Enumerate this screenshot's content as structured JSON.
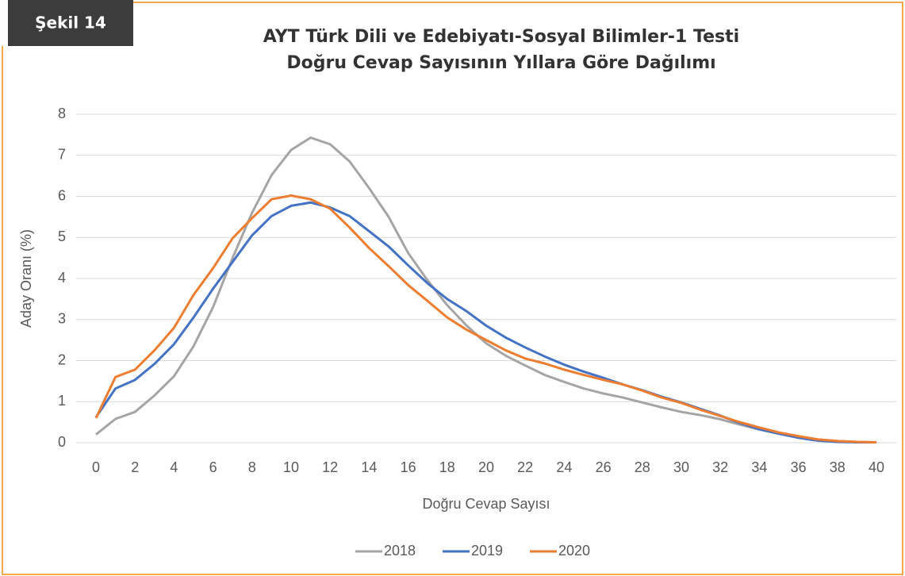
{
  "figure_label": "Şekil 14",
  "chart_data": {
    "type": "line",
    "title": [
      "AYT Türk Dili ve Edebiyatı-Sosyal Bilimler-1 Testi",
      "Doğru Cevap Sayısının Yıllara Göre Dağılımı"
    ],
    "x_label": "Doğru Cevap Sayısı",
    "y_label": "Aday Oranı (%)",
    "x": [
      0,
      1,
      2,
      3,
      4,
      5,
      6,
      7,
      8,
      9,
      10,
      11,
      12,
      13,
      14,
      15,
      16,
      17,
      18,
      19,
      20,
      21,
      22,
      23,
      24,
      25,
      26,
      27,
      28,
      29,
      30,
      31,
      32,
      33,
      34,
      35,
      36,
      37,
      38,
      39,
      40
    ],
    "xlim": [
      0,
      40
    ],
    "xticks": [
      0,
      2,
      4,
      6,
      8,
      10,
      12,
      14,
      16,
      18,
      20,
      22,
      24,
      26,
      28,
      30,
      32,
      34,
      36,
      38,
      40
    ],
    "ylim": [
      0,
      8
    ],
    "yticks": [
      0,
      1,
      2,
      3,
      4,
      5,
      6,
      7,
      8
    ],
    "grid": true,
    "legend": "bottom",
    "series": [
      {
        "name": "2018",
        "color": "#a5a5a5",
        "values": [
          0.2,
          0.58,
          0.75,
          1.15,
          1.62,
          2.35,
          3.3,
          4.5,
          5.6,
          6.52,
          7.13,
          7.43,
          7.27,
          6.85,
          6.2,
          5.5,
          4.62,
          3.95,
          3.35,
          2.85,
          2.42,
          2.12,
          1.88,
          1.65,
          1.48,
          1.32,
          1.2,
          1.1,
          0.98,
          0.86,
          0.75,
          0.67,
          0.57,
          0.44,
          0.32,
          0.22,
          0.15,
          0.08,
          0.04,
          0.02,
          0.01
        ]
      },
      {
        "name": "2019",
        "color": "#4472c4",
        "values": [
          0.62,
          1.32,
          1.53,
          1.92,
          2.4,
          3.05,
          3.75,
          4.4,
          5.05,
          5.52,
          5.77,
          5.85,
          5.73,
          5.52,
          5.15,
          4.78,
          4.32,
          3.88,
          3.5,
          3.2,
          2.85,
          2.56,
          2.32,
          2.1,
          1.9,
          1.73,
          1.58,
          1.42,
          1.28,
          1.12,
          0.98,
          0.82,
          0.66,
          0.48,
          0.33,
          0.22,
          0.12,
          0.05,
          0.02,
          0.01,
          0.01
        ]
      },
      {
        "name": "2020",
        "color": "#ed7d31",
        "values": [
          0.6,
          1.6,
          1.78,
          2.25,
          2.8,
          3.6,
          4.25,
          4.98,
          5.47,
          5.93,
          6.02,
          5.93,
          5.7,
          5.24,
          4.74,
          4.3,
          3.84,
          3.45,
          3.05,
          2.75,
          2.5,
          2.25,
          2.05,
          1.93,
          1.78,
          1.65,
          1.53,
          1.42,
          1.27,
          1.1,
          0.97,
          0.8,
          0.65,
          0.5,
          0.37,
          0.25,
          0.16,
          0.08,
          0.04,
          0.02,
          0.01
        ]
      }
    ]
  }
}
